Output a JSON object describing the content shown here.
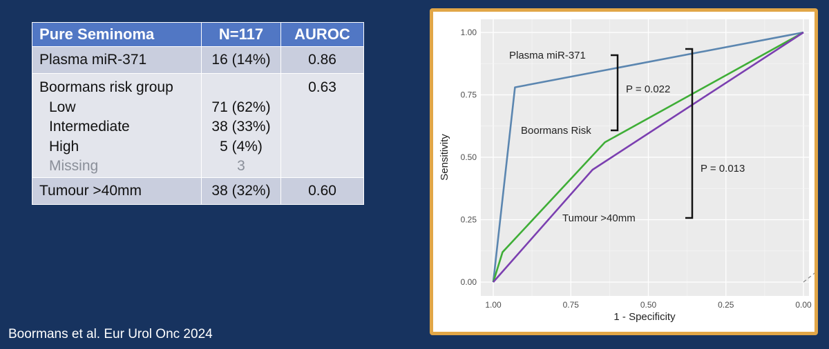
{
  "table": {
    "headers": [
      "Pure Seminoma",
      "N=117",
      "AUROC"
    ],
    "rows": {
      "mirna": {
        "label": "Plasma miR-371",
        "n": "16 (14%)",
        "auroc": "0.86"
      },
      "boormans": {
        "label": "Boormans risk group",
        "auroc": "0.63",
        "sub": [
          {
            "label": "Low",
            "n": "71 (62%)"
          },
          {
            "label": "Intermediate",
            "n": "38 (33%)"
          },
          {
            "label": "High",
            "n": "5 (4%)"
          },
          {
            "label": "Missing",
            "n": "3"
          }
        ]
      },
      "tumour": {
        "label": "Tumour >40mm",
        "n": "38 (32%)",
        "auroc": "0.60"
      }
    }
  },
  "citation": "Boormans et al. Eur Urol Onc 2024",
  "chart_data": {
    "type": "line",
    "xlabel": "1 - Specificity",
    "ylabel": "Sensitivity",
    "xlim": [
      1.0,
      0.0
    ],
    "ylim": [
      0.0,
      1.0
    ],
    "x_reversed": true,
    "x_ticks": [
      "1.00",
      "0.75",
      "0.50",
      "0.25",
      "0.00"
    ],
    "y_ticks": [
      "0.00",
      "0.25",
      "0.50",
      "0.75",
      "1.00"
    ],
    "grid": true,
    "series": [
      {
        "name": "Plasma miR-371",
        "color": "#5b86b0",
        "x": [
          1.0,
          0.93,
          0.0
        ],
        "y": [
          0.0,
          0.78,
          1.0
        ]
      },
      {
        "name": "Boormans Risk",
        "color": "#3fae37",
        "x": [
          1.0,
          0.97,
          0.64,
          0.0
        ],
        "y": [
          0.0,
          0.12,
          0.56,
          1.0
        ]
      },
      {
        "name": "Tumour >40mm",
        "color": "#7b3fb0",
        "x": [
          1.0,
          0.68,
          0.0
        ],
        "y": [
          0.0,
          0.45,
          1.0
        ]
      }
    ],
    "reference_line": {
      "x": [
        0.0,
        -0.1
      ],
      "y": [
        0.0,
        0.1
      ],
      "style": "dashed",
      "color": "#888888"
    },
    "annotations": {
      "label_mirna": "Plasma miR-371",
      "label_boormans": "Boormans Risk",
      "label_tumour": "Tumour >40mm",
      "p1": "P = 0.022",
      "p2": "P = 0.013"
    }
  }
}
